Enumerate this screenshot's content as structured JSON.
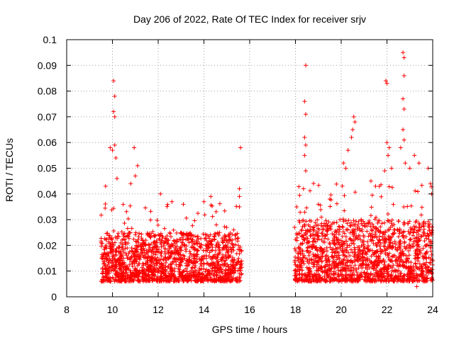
{
  "chart_data": {
    "type": "scatter",
    "title": "Day 206 of 2022, Rate Of TEC Index for receiver srjv",
    "xlabel": "GPS time / hours",
    "ylabel": "ROTI / TECUs",
    "xlim": [
      8,
      24
    ],
    "ylim": [
      0,
      0.1
    ],
    "xticks": [
      8,
      10,
      12,
      14,
      16,
      18,
      20,
      22,
      24
    ],
    "xtick_labels": [
      "8",
      "10",
      "12",
      "14",
      "16",
      "18",
      "20",
      "22",
      "24"
    ],
    "yticks": [
      0,
      0.01,
      0.02,
      0.03,
      0.04,
      0.05,
      0.06,
      0.07,
      0.08,
      0.09,
      0.1
    ],
    "ytick_labels": [
      "0",
      "0.01",
      "0.02",
      "0.03",
      "0.04",
      "0.05",
      "0.06",
      "0.07",
      "0.08",
      "0.09",
      "0.1"
    ],
    "grid": true,
    "marker": "+",
    "color": "#ff0000",
    "series": [
      {
        "name": "ROTI",
        "segments": [
          {
            "x_range": [
              9.5,
              15.65
            ],
            "typical_range": [
              0.006,
              0.025
            ]
          },
          {
            "x_range": [
              17.95,
              24.0
            ],
            "typical_range": [
              0.006,
              0.03
            ]
          }
        ],
        "points": [
          {
            "x": 10.05,
            "y": 0.084
          },
          {
            "x": 10.1,
            "y": 0.078
          },
          {
            "x": 10.05,
            "y": 0.072
          },
          {
            "x": 10.1,
            "y": 0.07
          },
          {
            "x": 9.9,
            "y": 0.058
          },
          {
            "x": 10.0,
            "y": 0.057
          },
          {
            "x": 10.1,
            "y": 0.059
          },
          {
            "x": 10.15,
            "y": 0.054
          },
          {
            "x": 10.2,
            "y": 0.046
          },
          {
            "x": 10.95,
            "y": 0.058
          },
          {
            "x": 11.1,
            "y": 0.051
          },
          {
            "x": 11.0,
            "y": 0.047
          },
          {
            "x": 10.8,
            "y": 0.044
          },
          {
            "x": 9.7,
            "y": 0.043
          },
          {
            "x": 12.1,
            "y": 0.04
          },
          {
            "x": 12.6,
            "y": 0.037
          },
          {
            "x": 13.1,
            "y": 0.036
          },
          {
            "x": 14.0,
            "y": 0.037
          },
          {
            "x": 14.3,
            "y": 0.039
          },
          {
            "x": 15.6,
            "y": 0.058
          },
          {
            "x": 15.55,
            "y": 0.042
          },
          {
            "x": 15.55,
            "y": 0.039
          },
          {
            "x": 15.55,
            "y": 0.035
          },
          {
            "x": 15.3,
            "y": 0.026
          },
          {
            "x": 18.45,
            "y": 0.09
          },
          {
            "x": 18.4,
            "y": 0.076
          },
          {
            "x": 18.45,
            "y": 0.071
          },
          {
            "x": 18.4,
            "y": 0.062
          },
          {
            "x": 18.45,
            "y": 0.059
          },
          {
            "x": 18.4,
            "y": 0.055
          },
          {
            "x": 18.45,
            "y": 0.049
          },
          {
            "x": 18.35,
            "y": 0.042
          },
          {
            "x": 18.05,
            "y": 0.035
          },
          {
            "x": 20.55,
            "y": 0.07
          },
          {
            "x": 20.6,
            "y": 0.068
          },
          {
            "x": 20.5,
            "y": 0.065
          },
          {
            "x": 20.45,
            "y": 0.062
          },
          {
            "x": 20.3,
            "y": 0.057
          },
          {
            "x": 20.1,
            "y": 0.052
          },
          {
            "x": 20.2,
            "y": 0.05
          },
          {
            "x": 21.95,
            "y": 0.084
          },
          {
            "x": 22.0,
            "y": 0.083
          },
          {
            "x": 22.0,
            "y": 0.06
          },
          {
            "x": 22.1,
            "y": 0.058
          },
          {
            "x": 22.05,
            "y": 0.055
          },
          {
            "x": 22.2,
            "y": 0.05
          },
          {
            "x": 21.9,
            "y": 0.049
          },
          {
            "x": 22.7,
            "y": 0.095
          },
          {
            "x": 22.75,
            "y": 0.093
          },
          {
            "x": 22.75,
            "y": 0.086
          },
          {
            "x": 22.7,
            "y": 0.077
          },
          {
            "x": 22.75,
            "y": 0.073
          },
          {
            "x": 22.7,
            "y": 0.065
          },
          {
            "x": 22.75,
            "y": 0.061
          },
          {
            "x": 22.6,
            "y": 0.058
          },
          {
            "x": 22.8,
            "y": 0.052
          },
          {
            "x": 23.0,
            "y": 0.05
          },
          {
            "x": 23.2,
            "y": 0.055
          },
          {
            "x": 23.4,
            "y": 0.052
          },
          {
            "x": 23.8,
            "y": 0.05
          },
          {
            "x": 23.9,
            "y": 0.044
          },
          {
            "x": 23.95,
            "y": 0.04
          },
          {
            "x": 21.3,
            "y": 0.045
          },
          {
            "x": 21.5,
            "y": 0.043
          },
          {
            "x": 19.0,
            "y": 0.036
          },
          {
            "x": 19.5,
            "y": 0.038
          },
          {
            "x": 23.3,
            "y": 0.004
          }
        ]
      }
    ]
  }
}
